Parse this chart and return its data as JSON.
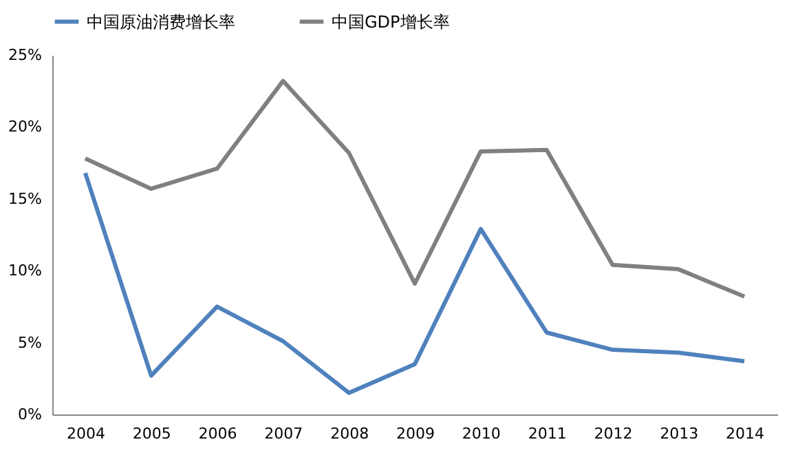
{
  "chart_data": {
    "type": "line",
    "categories": [
      "2004",
      "2005",
      "2006",
      "2007",
      "2008",
      "2009",
      "2010",
      "2011",
      "2012",
      "2013",
      "2014"
    ],
    "series": [
      {
        "name": "中国原油消费增长率",
        "color": "#4f81bd",
        "values": [
          16.8,
          2.7,
          7.5,
          5.1,
          1.5,
          3.5,
          12.9,
          5.7,
          4.5,
          4.3,
          3.7
        ]
      },
      {
        "name": "中国GDP增长率",
        "color": "#808080",
        "values": [
          17.8,
          15.7,
          17.1,
          23.2,
          18.2,
          9.1,
          18.3,
          18.4,
          10.4,
          10.1,
          8.2
        ]
      }
    ],
    "ylim": [
      0,
      25
    ],
    "yticks": [
      {
        "value": 0,
        "label": "0%"
      },
      {
        "value": 5,
        "label": "5%"
      },
      {
        "value": 10,
        "label": "10%"
      },
      {
        "value": 15,
        "label": "15%"
      },
      {
        "value": 20,
        "label": "20%"
      },
      {
        "value": 25,
        "label": "25%"
      }
    ],
    "grid": false,
    "legend": "top",
    "marker": "none",
    "line_style": "solid"
  }
}
